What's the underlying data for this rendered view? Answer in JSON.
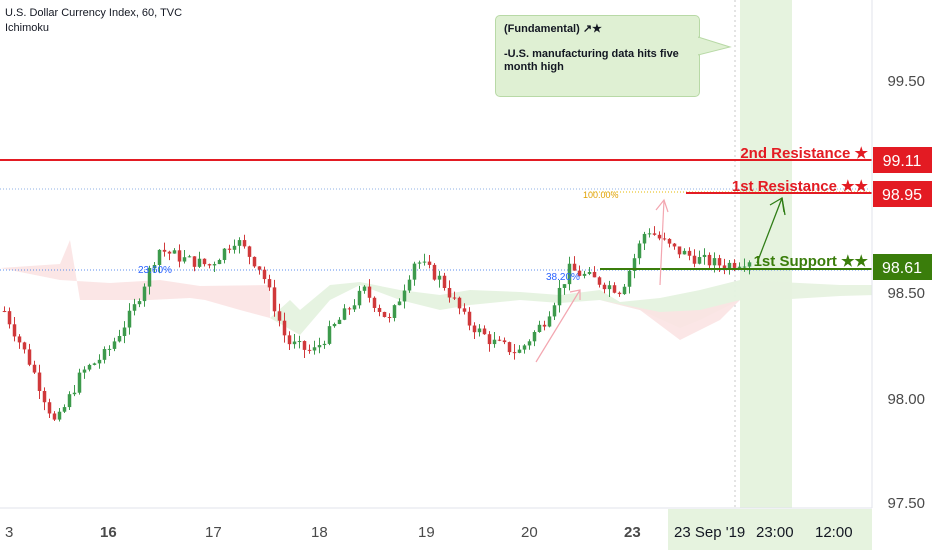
{
  "header": {
    "title": "U.S. Dollar Currency Index, 60, TVC",
    "indicator": "Ichimoku"
  },
  "callout": {
    "heading": "(Fundamental) ↗★",
    "text": "-U.S. manufacturing data hits  five month high"
  },
  "colors": {
    "resistance": "#e31b23",
    "support": "#3a7d0b",
    "fib": "#2962ff",
    "up_candle": "#3d9a4c",
    "down_candle": "#d0393b",
    "cloud_bull": "#e5f2df",
    "cloud_bear": "#fbe3e3",
    "highlight": "#e6f3df"
  },
  "levels": {
    "r2": {
      "label": "2nd Resistance ★",
      "value": "99.11"
    },
    "r1": {
      "label": "1st Resistance ★★",
      "value": "98.95"
    },
    "s1": {
      "label": "1st Support ★★",
      "value": "98.61"
    }
  },
  "fib_labels": {
    "f236": "23.60%",
    "f382": "38.20%",
    "f100": "100.00%"
  },
  "chart_data": {
    "type": "candlestick",
    "title": "U.S. Dollar Currency Index, 60, TVC",
    "xlabel": "",
    "ylabel": "",
    "ylim": [
      97.45,
      99.9
    ],
    "y_ticks": [
      "99.50",
      "98.50",
      "98.00",
      "97.50"
    ],
    "x_ticks": [
      "3",
      "16",
      "17",
      "18",
      "19",
      "20",
      "23",
      "23 Sep '19",
      "23:00",
      "12:00"
    ],
    "price_path": [
      98.4,
      98.15,
      97.85,
      98.1,
      98.2,
      98.4,
      98.7,
      98.65,
      98.62,
      98.75,
      98.6,
      98.25,
      98.2,
      98.35,
      98.5,
      98.35,
      98.65,
      98.55,
      98.35,
      98.25,
      98.2,
      98.35,
      98.6,
      98.55,
      98.5,
      98.8,
      98.7,
      98.65,
      98.62,
      98.65
    ],
    "levels": [
      {
        "name": "2nd Resistance",
        "value": 99.11
      },
      {
        "name": "1st Resistance",
        "value": 98.95
      },
      {
        "name": "1st Support",
        "value": 98.61
      }
    ],
    "fibonacci": [
      {
        "label": "23.60%",
        "value": 98.61
      },
      {
        "label": "38.20%",
        "value": 98.61
      },
      {
        "label": "100.00%",
        "value": 98.95
      }
    ],
    "grid": false
  }
}
